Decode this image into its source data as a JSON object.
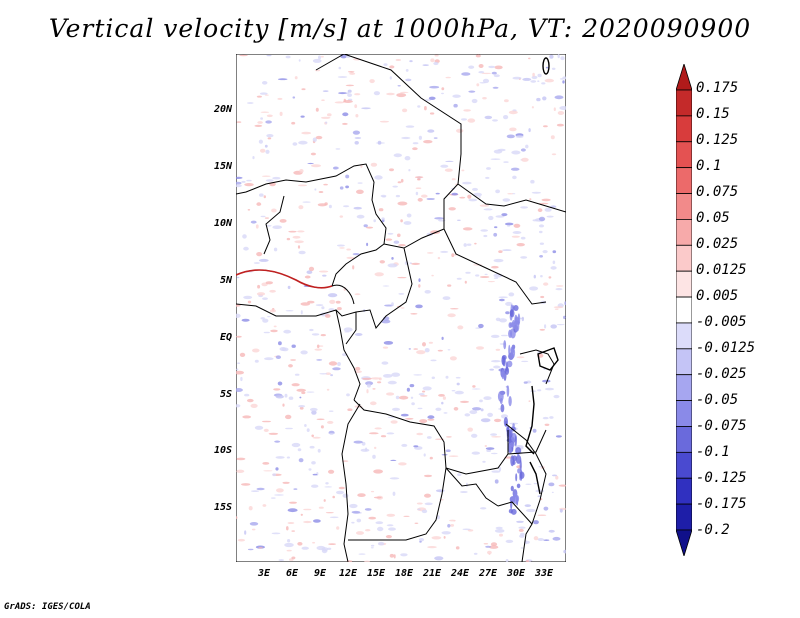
{
  "title": "Vertical velocity [m/s] at 1000hPa, VT: 2020090900",
  "footer": "GrADS: IGES/COLA",
  "lat_labels": [
    "20N",
    "15N",
    "10N",
    "5N",
    "EQ",
    "5S",
    "10S",
    "15S"
  ],
  "lon_labels": [
    "3E",
    "6E",
    "9E",
    "12E",
    "15E",
    "18E",
    "21E",
    "24E",
    "27E",
    "30E",
    "33E"
  ],
  "colorbar": {
    "labels": [
      "0.175",
      "0.15",
      "0.125",
      "0.1",
      "0.075",
      "0.05",
      "0.025",
      "0.0125",
      "0.005",
      "-0.005",
      "-0.0125",
      "-0.025",
      "-0.05",
      "-0.075",
      "-0.1",
      "-0.125",
      "-0.175",
      "-0.2"
    ],
    "colors": [
      "#b01a1a",
      "#c42a2a",
      "#d83c3c",
      "#e45252",
      "#ec6a6a",
      "#f28a8a",
      "#f7aaaa",
      "#fbcaca",
      "#fde4e4",
      "#ffffff",
      "#dcdcfa",
      "#c4c4f6",
      "#a6a6f0",
      "#8a8ae8",
      "#6a6adc",
      "#4a4ad0",
      "#3030c0",
      "#1e1ea8",
      "#10108a"
    ]
  }
}
